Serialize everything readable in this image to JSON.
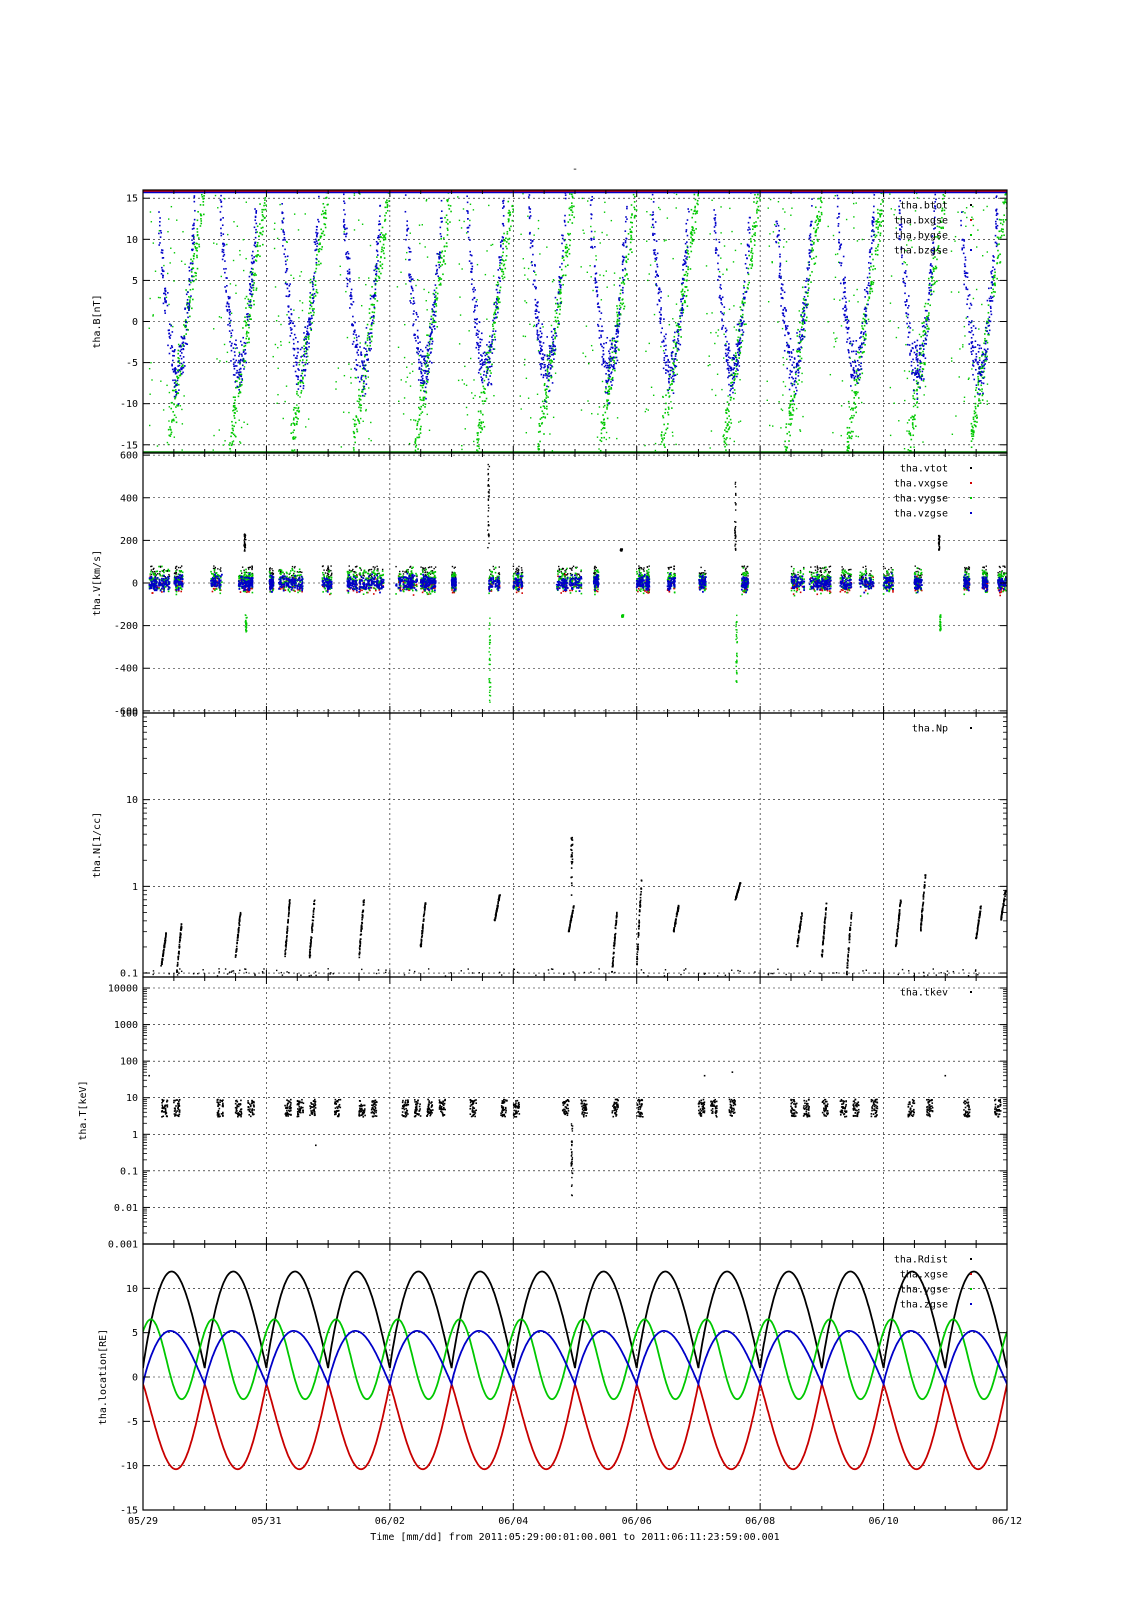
{
  "figure": {
    "title": "-",
    "x_title": "Time [mm/dd]  from 2011:05:29:00:01:00.001  to  2011:06:11:23:59:00.001"
  },
  "chart_data": [
    {
      "type": "scatter",
      "ylabel": "tha.B[nT]",
      "ylim": [
        -16,
        16
      ],
      "yticks": [
        -15,
        -10,
        -5,
        0,
        5,
        10,
        15
      ],
      "ytick_labels": [
        "-15",
        "-10",
        "-5",
        "0",
        "5",
        "10",
        "15"
      ],
      "legend_placement": "top-right",
      "series": [
        {
          "name": "tha.btot",
          "color": "#000000"
        },
        {
          "name": "tha.bxgse",
          "color": "#d00000"
        },
        {
          "name": "tha.bygse",
          "color": "#00c800"
        },
        {
          "name": "tha.bzgse",
          "color": "#0000c8"
        }
      ]
    },
    {
      "type": "scatter",
      "ylabel": "tha.V[km/s]",
      "ylim": [
        -610,
        610
      ],
      "yticks": [
        -600,
        -400,
        -200,
        0,
        200,
        400,
        600
      ],
      "ytick_labels": [
        "-600",
        "-400",
        "-200",
        "0",
        "200",
        "400",
        "600"
      ],
      "legend_placement": "top-right",
      "series": [
        {
          "name": "tha.vtot",
          "color": "#000000"
        },
        {
          "name": "tha.vxgse",
          "color": "#d00000"
        },
        {
          "name": "tha.vygse",
          "color": "#00c800"
        },
        {
          "name": "tha.vzgse",
          "color": "#0000c8"
        }
      ]
    },
    {
      "type": "scatter",
      "ylabel": "tha.N[1/cc]",
      "yscale": "log",
      "ylim": [
        0.09,
        100
      ],
      "yticks": [
        0.1,
        1,
        10,
        100
      ],
      "ytick_labels": [
        "0.1",
        "1",
        "10",
        "100"
      ],
      "legend_placement": "top-right",
      "series": [
        {
          "name": "tha.Np",
          "color": "#000000"
        }
      ]
    },
    {
      "type": "scatter",
      "ylabel": "tha.T[keV]",
      "yscale": "log",
      "ylim": [
        0.001,
        20000
      ],
      "yticks": [
        0.001,
        0.01,
        0.1,
        1,
        10,
        100,
        1000,
        10000
      ],
      "ytick_labels": [
        "0.001",
        "0.01",
        "0.1",
        "1",
        "10",
        "100",
        "1000",
        "10000"
      ],
      "legend_placement": "top-right",
      "series": [
        {
          "name": "tha.tkev",
          "color": "#000000"
        }
      ]
    },
    {
      "type": "line",
      "ylabel": "tha.location[RE]",
      "ylim": [
        -15,
        15
      ],
      "yticks": [
        -15,
        -10,
        -5,
        0,
        5,
        10
      ],
      "ytick_labels": [
        "-15",
        "-10",
        "-5",
        "0",
        "5",
        "10"
      ],
      "legend_placement": "top-right",
      "orbit_period_days": 1.0,
      "series": [
        {
          "name": "tha.Rdist",
          "color": "#000000",
          "apogee": 11.9,
          "perigee": 1.0
        },
        {
          "name": "tha.xgse",
          "color": "#c80000",
          "min": -10.4,
          "max": -0.8
        },
        {
          "name": "tha.ygse",
          "color": "#00c800",
          "min": -2.5,
          "max": 6.5
        },
        {
          "name": "tha.zgse",
          "color": "#0000c8",
          "min": -0.8,
          "max": 5.2
        }
      ]
    }
  ],
  "x_axis": {
    "range_days": [
      0,
      14
    ],
    "major_ticks": [
      0,
      2,
      4,
      6,
      8,
      10,
      12,
      14
    ],
    "labels": [
      "05/29",
      "05/31",
      "06/02",
      "06/04",
      "06/06",
      "06/08",
      "06/10",
      "06/12"
    ]
  },
  "colors": {
    "black": "#000000",
    "red": "#d00000",
    "green": "#00c800",
    "blue": "#0000c8"
  }
}
